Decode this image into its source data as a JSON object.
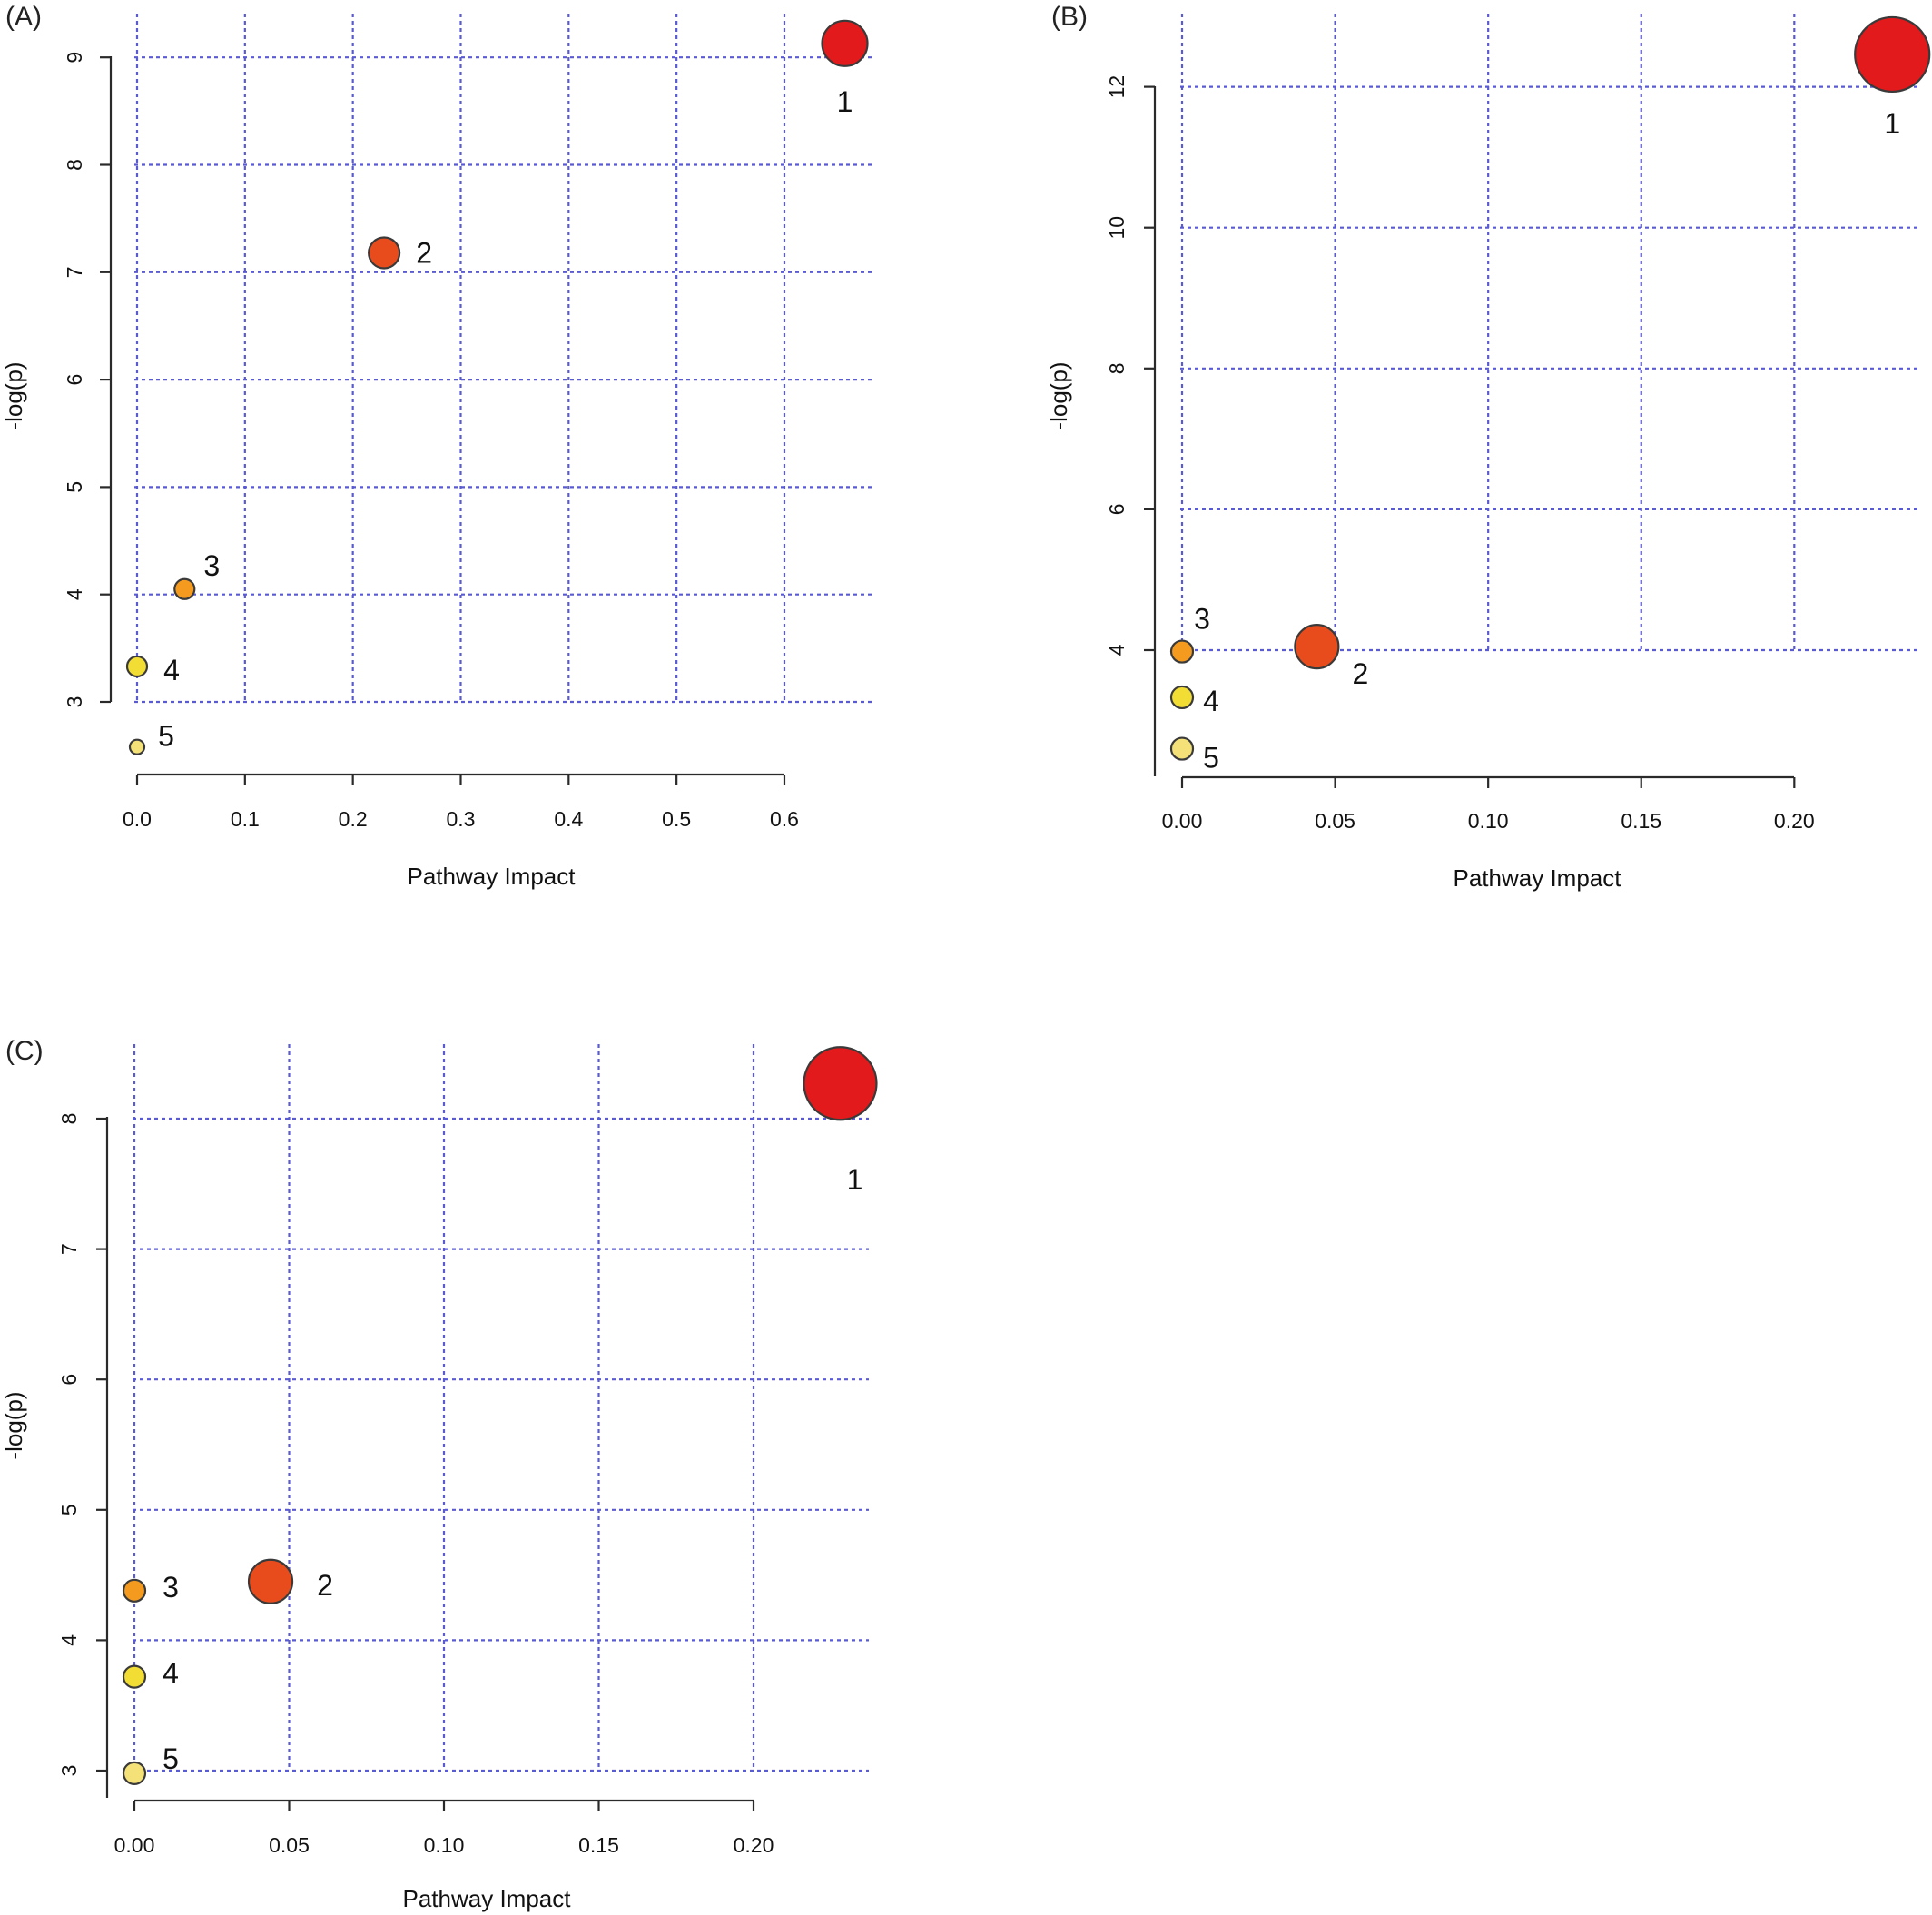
{
  "chart_data": [
    {
      "type": "scatter",
      "panel_label": "(A)",
      "xlabel": "Pathway Impact",
      "ylabel": "-log(p)",
      "xticks": [
        "0.0",
        "0.1",
        "0.2",
        "0.3",
        "0.4",
        "0.5",
        "0.6"
      ],
      "yticks": [
        "3",
        "4",
        "5",
        "6",
        "7",
        "8",
        "9"
      ],
      "grid": true,
      "points": [
        {
          "label": "1",
          "x": 0.656,
          "y": 9.13,
          "color": "#e31a1c",
          "size": "largest"
        },
        {
          "label": "2",
          "x": 0.229,
          "y": 7.18,
          "color": "#e84c1c",
          "size": "medium"
        },
        {
          "label": "3",
          "x": 0.044,
          "y": 4.05,
          "color": "#f39a1f",
          "size": "small"
        },
        {
          "label": "4",
          "x": 0.0,
          "y": 3.33,
          "color": "#f2dd34",
          "size": "small"
        },
        {
          "label": "5",
          "x": 0.0,
          "y": 2.58,
          "color": "#f4e178",
          "size": "smallest"
        }
      ]
    },
    {
      "type": "scatter",
      "panel_label": "(B)",
      "xlabel": "Pathway Impact",
      "ylabel": "-log(p)",
      "xticks": [
        "0.00",
        "0.05",
        "0.10",
        "0.15",
        "0.20"
      ],
      "yticks": [
        "4",
        "6",
        "8",
        "10",
        "12"
      ],
      "grid": true,
      "points": [
        {
          "label": "1",
          "x": 0.232,
          "y": 12.46,
          "color": "#e31a1c",
          "size": "largest"
        },
        {
          "label": "2",
          "x": 0.044,
          "y": 4.05,
          "color": "#e84c1c",
          "size": "large"
        },
        {
          "label": "3",
          "x": 0.0,
          "y": 3.98,
          "color": "#f39a1f",
          "size": "small"
        },
        {
          "label": "4",
          "x": 0.0,
          "y": 3.33,
          "color": "#f2dd34",
          "size": "small"
        },
        {
          "label": "5",
          "x": 0.0,
          "y": 2.6,
          "color": "#f4e178",
          "size": "small"
        }
      ]
    },
    {
      "type": "scatter",
      "panel_label": "(C)",
      "xlabel": "Pathway Impact",
      "ylabel": "-log(p)",
      "xticks": [
        "0.00",
        "0.05",
        "0.10",
        "0.15",
        "0.20"
      ],
      "yticks": [
        "3",
        "4",
        "5",
        "6",
        "7",
        "8"
      ],
      "grid": true,
      "points": [
        {
          "label": "1",
          "x": 0.228,
          "y": 8.27,
          "color": "#e31a1c",
          "size": "largest"
        },
        {
          "label": "2",
          "x": 0.044,
          "y": 4.45,
          "color": "#e84c1c",
          "size": "large"
        },
        {
          "label": "3",
          "x": 0.0,
          "y": 4.38,
          "color": "#f39a1f",
          "size": "small"
        },
        {
          "label": "4",
          "x": 0.0,
          "y": 3.72,
          "color": "#f2dd34",
          "size": "small"
        },
        {
          "label": "5",
          "x": 0.0,
          "y": 2.98,
          "color": "#f4e178",
          "size": "small"
        }
      ]
    }
  ]
}
